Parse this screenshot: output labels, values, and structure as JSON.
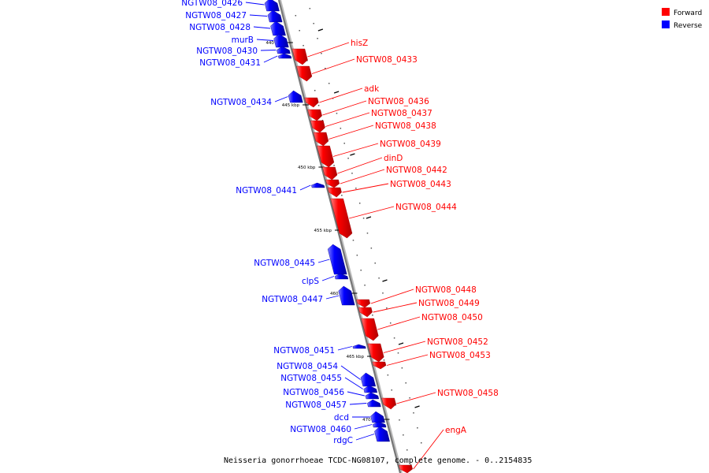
{
  "caption": "Neisseria gonorrhoeae TCDC-NG08107, complete genome. - 0..2154835",
  "legend": {
    "placement": "top-right",
    "items": [
      {
        "label": "Forward",
        "color": "#ff0000"
      },
      {
        "label": "Reverse",
        "color": "#0000ff"
      }
    ]
  },
  "colors": {
    "forward": "#ff0000",
    "reverse": "#0000ff",
    "backbone": "#888888"
  },
  "ticks": [
    "440 kbp",
    "445 kbp",
    "450 kbp",
    "455 kbp",
    "460 kbp",
    "465 kbp",
    "470 kbp"
  ],
  "genes": [
    {
      "name": "NGTW08_0426",
      "strand": "reverse"
    },
    {
      "name": "NGTW08_0427",
      "strand": "reverse"
    },
    {
      "name": "NGTW08_0428",
      "strand": "reverse"
    },
    {
      "name": "murB",
      "strand": "reverse"
    },
    {
      "name": "NGTW08_0430",
      "strand": "reverse"
    },
    {
      "name": "NGTW08_0431",
      "strand": "reverse"
    },
    {
      "name": "hisZ",
      "strand": "forward"
    },
    {
      "name": "NGTW08_0433",
      "strand": "forward"
    },
    {
      "name": "adk",
      "strand": "forward"
    },
    {
      "name": "NGTW08_0434",
      "strand": "reverse"
    },
    {
      "name": "NGTW08_0436",
      "strand": "forward"
    },
    {
      "name": "NGTW08_0437",
      "strand": "forward"
    },
    {
      "name": "NGTW08_0438",
      "strand": "forward"
    },
    {
      "name": "NGTW08_0439",
      "strand": "forward"
    },
    {
      "name": "dinD",
      "strand": "forward"
    },
    {
      "name": "NGTW08_0442",
      "strand": "forward"
    },
    {
      "name": "NGTW08_0443",
      "strand": "forward"
    },
    {
      "name": "NGTW08_0441",
      "strand": "reverse"
    },
    {
      "name": "NGTW08_0444",
      "strand": "forward"
    },
    {
      "name": "NGTW08_0445",
      "strand": "reverse"
    },
    {
      "name": "clpS",
      "strand": "reverse"
    },
    {
      "name": "NGTW08_0447",
      "strand": "reverse"
    },
    {
      "name": "NGTW08_0448",
      "strand": "forward"
    },
    {
      "name": "NGTW08_0449",
      "strand": "forward"
    },
    {
      "name": "NGTW08_0450",
      "strand": "forward"
    },
    {
      "name": "NGTW08_0451",
      "strand": "reverse"
    },
    {
      "name": "NGTW08_0452",
      "strand": "forward"
    },
    {
      "name": "NGTW08_0453",
      "strand": "forward"
    },
    {
      "name": "NGTW08_0454",
      "strand": "reverse"
    },
    {
      "name": "NGTW08_0455",
      "strand": "reverse"
    },
    {
      "name": "NGTW08_0456",
      "strand": "reverse"
    },
    {
      "name": "NGTW08_0457",
      "strand": "reverse"
    },
    {
      "name": "NGTW08_0458",
      "strand": "forward"
    },
    {
      "name": "dcd",
      "strand": "reverse"
    },
    {
      "name": "NGTW08_0460",
      "strand": "reverse"
    },
    {
      "name": "rdgC",
      "strand": "reverse"
    },
    {
      "name": "engA",
      "strand": "forward"
    }
  ]
}
